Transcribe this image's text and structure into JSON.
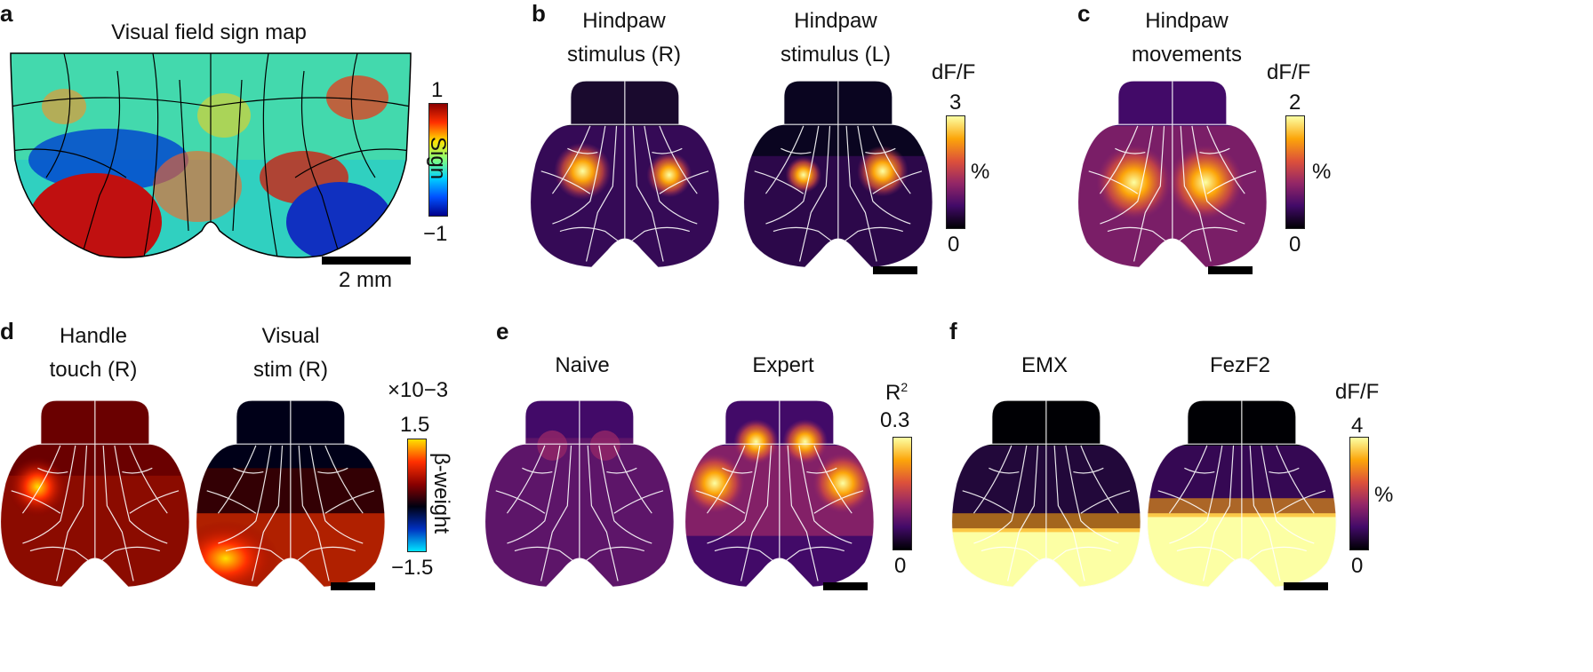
{
  "panels": {
    "a": {
      "label": "a",
      "title": "Visual field sign map",
      "cb_max": "1",
      "cb_min": "−1",
      "cb_label": "Sign",
      "scalebar_label": "2 mm"
    },
    "b": {
      "label": "b",
      "title_left": [
        "Hindpaw",
        "stimulus (R)"
      ],
      "title_right": [
        "Hindpaw",
        "stimulus (L)"
      ],
      "cb_title": "dF/F",
      "cb_max": "3",
      "cb_min": "0",
      "cb_unit": "%"
    },
    "c": {
      "label": "c",
      "title": [
        "Hindpaw",
        "movements"
      ],
      "cb_title": "dF/F",
      "cb_max": "2",
      "cb_min": "0",
      "cb_unit": "%"
    },
    "d": {
      "label": "d",
      "title_left": [
        "Handle",
        "touch (R)"
      ],
      "title_right": [
        "Visual",
        "stim (R)"
      ],
      "cb_title": "×10−3",
      "cb_max": "1.5",
      "cb_min": "−1.5",
      "cb_label": "β-weight"
    },
    "e": {
      "label": "e",
      "title_left": "Naive",
      "title_right": "Expert",
      "cb_title": "R2",
      "cb_max": "0.3",
      "cb_min": "0"
    },
    "f": {
      "label": "f",
      "title_left": "EMX",
      "title_right": "FezF2",
      "cb_title": "dF/F",
      "cb_max": "4",
      "cb_min": "0",
      "cb_unit": "%"
    }
  },
  "colors": {
    "inferno": [
      "#000004",
      "#420a68",
      "#932667",
      "#dd513a",
      "#fca50a",
      "#fcffa4"
    ],
    "jet": [
      "#00008b",
      "#0050ff",
      "#00d0ff",
      "#80ff80",
      "#ffe000",
      "#ff3000",
      "#8b0000"
    ],
    "hot_cold": [
      "#00e5ff",
      "#0030c0",
      "#000010",
      "#8b0000",
      "#ff3000",
      "#ffe000"
    ],
    "brain_outline": "#ffffff"
  }
}
